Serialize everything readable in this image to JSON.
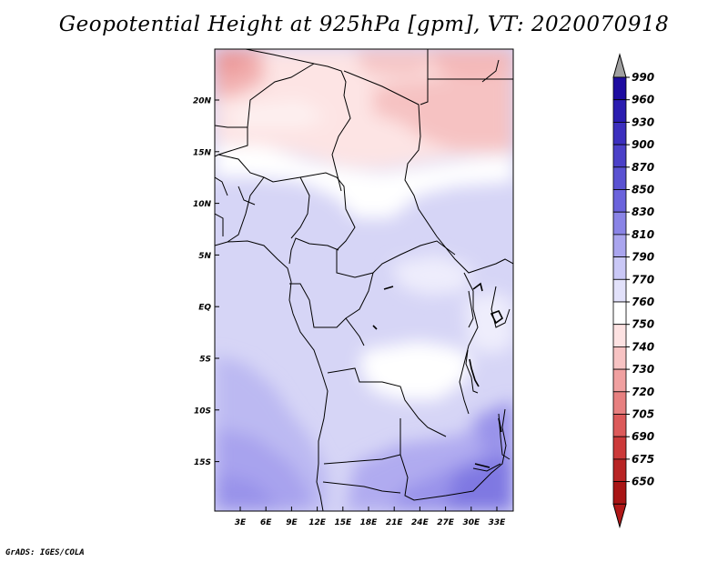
{
  "title": "Geopotential Height at 925hPa [gpm], VT: 2020070918",
  "footer": "GrADS: IGES/COLA",
  "map": {
    "lat_labels": [
      "20N",
      "15N",
      "10N",
      "5N",
      "EQ",
      "5S",
      "10S",
      "15S"
    ],
    "lon_labels": [
      "3E",
      "6E",
      "9E",
      "12E",
      "15E",
      "18E",
      "21E",
      "24E",
      "27E",
      "30E",
      "33E"
    ]
  },
  "colorbar": {
    "levels": [
      "990",
      "960",
      "930",
      "900",
      "870",
      "850",
      "830",
      "810",
      "790",
      "770",
      "760",
      "750",
      "740",
      "730",
      "720",
      "705",
      "690",
      "675",
      "650"
    ],
    "colors": [
      "#1e0ca0",
      "#2b1db0",
      "#3c2fbe",
      "#4b40c8",
      "#5a52d2",
      "#6b63dc",
      "#8a84e6",
      "#aaa5ee",
      "#cac8f6",
      "#e2e1fa",
      "#ffffff",
      "#fde2e2",
      "#f7c3c3",
      "#f0a0a0",
      "#e78080",
      "#dc5a5a",
      "#cc3a3a",
      "#b82424",
      "#a81515"
    ],
    "top_color": "#a0a0a0",
    "bottom_color": "#b01818"
  }
}
